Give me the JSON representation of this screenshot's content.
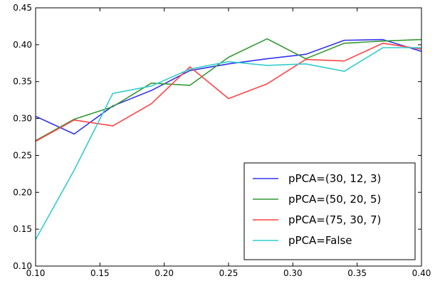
{
  "chart_data": {
    "type": "line",
    "title": "",
    "xlabel": "",
    "ylabel": "",
    "xlim": [
      0.1,
      0.4
    ],
    "ylim": [
      0.1,
      0.45
    ],
    "xticks": [
      "0.10",
      "0.15",
      "0.20",
      "0.25",
      "0.30",
      "0.35",
      "0.40"
    ],
    "yticks": [
      "0.10",
      "0.15",
      "0.20",
      "0.25",
      "0.30",
      "0.35",
      "0.40",
      "0.45"
    ],
    "grid": false,
    "legend_position": "lower-right",
    "x": [
      0.1,
      0.13,
      0.16,
      0.19,
      0.22,
      0.25,
      0.28,
      0.31,
      0.34,
      0.37,
      0.4
    ],
    "series": [
      {
        "name": "pPCA=(30, 12, 3)",
        "color": "#3333ee",
        "values": [
          0.303,
          0.279,
          0.317,
          0.338,
          0.365,
          0.374,
          0.381,
          0.387,
          0.406,
          0.407,
          0.391
        ]
      },
      {
        "name": "pPCA=(50, 20, 5)",
        "color": "#339933",
        "values": [
          0.27,
          0.299,
          0.316,
          0.348,
          0.345,
          0.383,
          0.408,
          0.381,
          0.402,
          0.405,
          0.407
        ]
      },
      {
        "name": "pPCA=(75, 30, 7)",
        "color": "#ff4444",
        "values": [
          0.269,
          0.298,
          0.29,
          0.32,
          0.37,
          0.327,
          0.347,
          0.38,
          0.378,
          0.402,
          0.394
        ]
      },
      {
        "name": "pPCA=False",
        "color": "#33cccc",
        "values": [
          0.136,
          0.23,
          0.334,
          0.344,
          0.367,
          0.377,
          0.372,
          0.374,
          0.364,
          0.396,
          0.396
        ]
      }
    ]
  }
}
